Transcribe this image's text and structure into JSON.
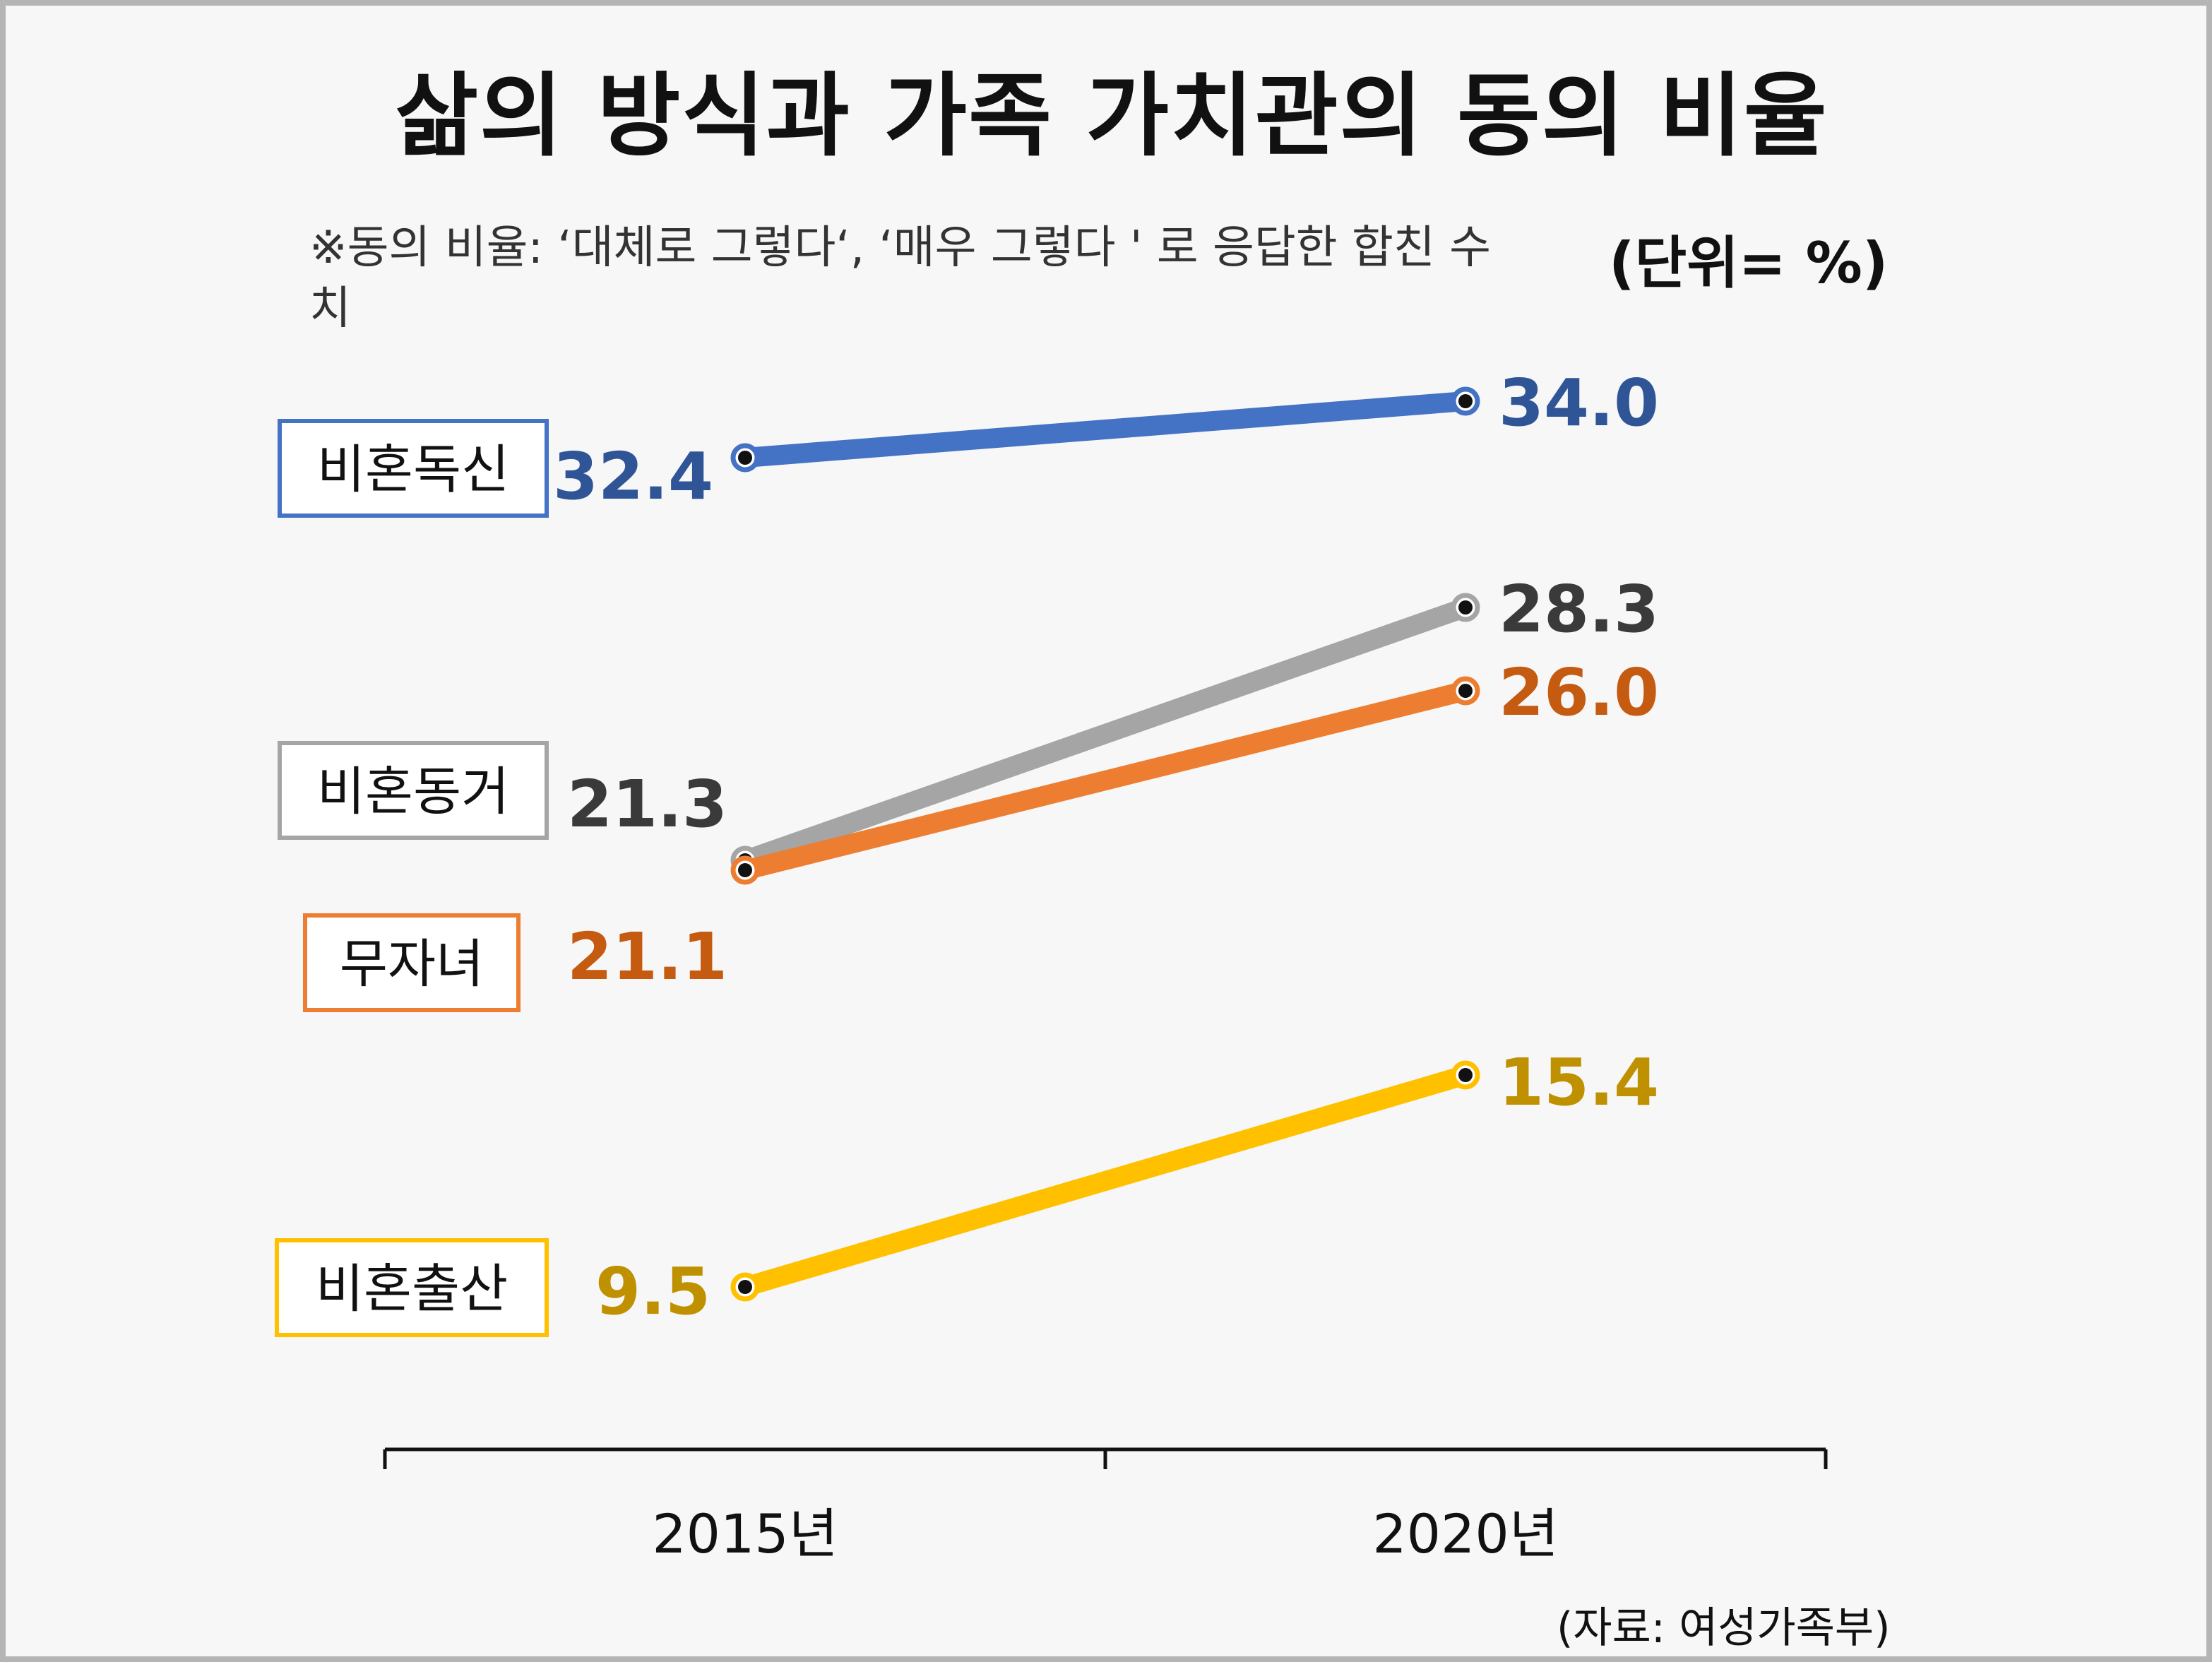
{
  "chart_data": {
    "type": "line",
    "title": "삶의 방식과 가족 가치관의 동의 비율",
    "note": "※동의 비율: ‘대체로 그렇다‘, ‘매우 그렇다 ' 로 응답한 합친 수치",
    "unit": "(단위= %)",
    "source": "(자료: 여성가족부)",
    "categories": [
      "2015년",
      "2020년"
    ],
    "series": [
      {
        "name": "비혼독신",
        "values": [
          32.4,
          34.0
        ],
        "color": "#4472c4",
        "label_color": "#2f5597"
      },
      {
        "name": "비혼동거",
        "values": [
          21.3,
          28.3
        ],
        "color": "#a5a5a5",
        "label_color": "#3a3a3a"
      },
      {
        "name": "무자녀",
        "values": [
          21.1,
          26.0
        ],
        "color": "#ed7d31",
        "label_color": "#c55a11"
      },
      {
        "name": "비혼출산",
        "values": [
          9.5,
          15.4
        ],
        "color": "#ffc000",
        "label_color": "#bf9000"
      }
    ],
    "value_labels": [
      [
        "32.4",
        "34.0"
      ],
      [
        "21.3",
        "28.3"
      ],
      [
        "21.1",
        "26.0"
      ],
      [
        "9.5",
        "15.4"
      ]
    ],
    "grid": false,
    "legend": "left"
  }
}
